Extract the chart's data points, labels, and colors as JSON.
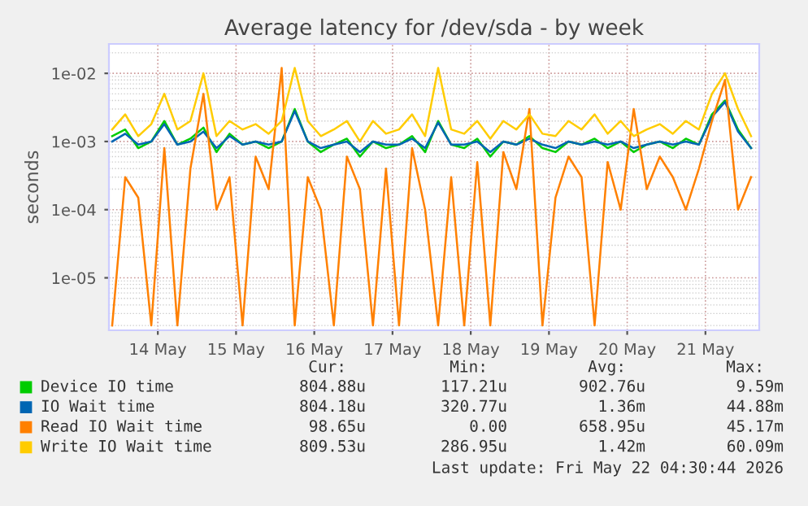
{
  "chart_data": {
    "type": "line",
    "title": "Average latency for /dev/sda - by week",
    "ylabel": "seconds",
    "log": "y",
    "grid": true,
    "legend": "bottom",
    "x": [
      "2026-05-13T22:00",
      "2026-05-14T02:00",
      "2026-05-14T06:00",
      "2026-05-14T10:00",
      "2026-05-14T14:00",
      "2026-05-14T18:00",
      "2026-05-14T22:00",
      "2026-05-15T02:00",
      "2026-05-15T06:00",
      "2026-05-15T10:00",
      "2026-05-15T14:00",
      "2026-05-15T18:00",
      "2026-05-15T22:00",
      "2026-05-16T02:00",
      "2026-05-16T06:00",
      "2026-05-16T10:00",
      "2026-05-16T14:00",
      "2026-05-16T18:00",
      "2026-05-16T22:00",
      "2026-05-17T02:00",
      "2026-05-17T06:00",
      "2026-05-17T10:00",
      "2026-05-17T14:00",
      "2026-05-17T18:00",
      "2026-05-17T22:00",
      "2026-05-18T02:00",
      "2026-05-18T06:00",
      "2026-05-18T10:00",
      "2026-05-18T14:00",
      "2026-05-18T18:00",
      "2026-05-18T22:00",
      "2026-05-19T02:00",
      "2026-05-19T06:00",
      "2026-05-19T10:00",
      "2026-05-19T14:00",
      "2026-05-19T18:00",
      "2026-05-19T22:00",
      "2026-05-20T02:00",
      "2026-05-20T06:00",
      "2026-05-20T10:00",
      "2026-05-20T14:00",
      "2026-05-20T18:00",
      "2026-05-20T22:00",
      "2026-05-21T02:00",
      "2026-05-21T06:00",
      "2026-05-21T10:00",
      "2026-05-21T14:00",
      "2026-05-21T18:00",
      "2026-05-21T22:00",
      "2026-05-22T02:00"
    ],
    "series": [
      {
        "name": "Device IO time",
        "color": "#00cc00",
        "values": [
          0.0012,
          0.0015,
          0.0008,
          0.001,
          0.002,
          0.0009,
          0.0011,
          0.0016,
          0.0007,
          0.0013,
          0.0009,
          0.001,
          0.0008,
          0.001,
          0.003,
          0.001,
          0.0007,
          0.0009,
          0.0011,
          0.0006,
          0.001,
          0.0008,
          0.0009,
          0.0012,
          0.0007,
          0.002,
          0.0009,
          0.0008,
          0.0011,
          0.0006,
          0.001,
          0.0009,
          0.0012,
          0.0008,
          0.0007,
          0.001,
          0.0009,
          0.0011,
          0.0008,
          0.001,
          0.0007,
          0.0009,
          0.001,
          0.0008,
          0.0011,
          0.0009,
          0.0025,
          0.004,
          0.0015,
          0.0008
        ]
      },
      {
        "name": "IO Wait time",
        "color": "#0066b3",
        "values": [
          0.001,
          0.0013,
          0.0009,
          0.001,
          0.0018,
          0.0009,
          0.001,
          0.0014,
          0.0008,
          0.0012,
          0.0009,
          0.001,
          0.0009,
          0.001,
          0.0028,
          0.001,
          0.0008,
          0.0009,
          0.001,
          0.0007,
          0.001,
          0.0009,
          0.0009,
          0.0011,
          0.0008,
          0.0019,
          0.0009,
          0.0009,
          0.001,
          0.0007,
          0.001,
          0.0009,
          0.0011,
          0.0009,
          0.0008,
          0.001,
          0.0009,
          0.001,
          0.0009,
          0.001,
          0.0008,
          0.0009,
          0.001,
          0.0009,
          0.001,
          0.0009,
          0.0023,
          0.0038,
          0.0014,
          0.0008
        ]
      },
      {
        "name": "Read IO Wait time",
        "color": "#ff8000",
        "values": [
          2e-06,
          0.0003,
          0.00015,
          2e-06,
          0.0008,
          2e-06,
          0.0004,
          0.005,
          0.0001,
          0.0003,
          2e-06,
          0.0006,
          0.0002,
          0.012,
          2e-06,
          0.0003,
          0.0001,
          2e-06,
          0.0006,
          0.0002,
          2e-06,
          0.0004,
          2e-06,
          0.0008,
          0.0001,
          2e-06,
          0.0003,
          2e-06,
          0.0005,
          2e-06,
          0.0007,
          0.0002,
          0.003,
          2e-06,
          0.00015,
          0.0006,
          0.0003,
          2e-06,
          0.0005,
          0.0001,
          0.003,
          0.0002,
          0.0006,
          0.0003,
          0.0001,
          0.0004,
          0.002,
          0.008,
          0.0001,
          0.0003
        ]
      },
      {
        "name": "Write IO Wait time",
        "color": "#ffcc00",
        "values": [
          0.0015,
          0.0025,
          0.0012,
          0.0018,
          0.005,
          0.0015,
          0.002,
          0.01,
          0.0012,
          0.002,
          0.0015,
          0.0018,
          0.0013,
          0.002,
          0.012,
          0.002,
          0.0012,
          0.0015,
          0.002,
          0.001,
          0.002,
          0.0013,
          0.0015,
          0.0025,
          0.0012,
          0.012,
          0.0015,
          0.0013,
          0.002,
          0.0011,
          0.002,
          0.0015,
          0.0025,
          0.0013,
          0.0012,
          0.002,
          0.0015,
          0.0025,
          0.0013,
          0.002,
          0.0012,
          0.0015,
          0.0018,
          0.0013,
          0.002,
          0.0015,
          0.005,
          0.01,
          0.003,
          0.0012
        ]
      }
    ],
    "xlim": [
      "2026-05-13T21:00",
      "2026-05-22T04:30"
    ],
    "xticks": [
      {
        "value": "2026-05-14T12:00",
        "label": "14 May"
      },
      {
        "value": "2026-05-15T12:00",
        "label": "15 May"
      },
      {
        "value": "2026-05-16T12:00",
        "label": "16 May"
      },
      {
        "value": "2026-05-17T12:00",
        "label": "17 May"
      },
      {
        "value": "2026-05-18T12:00",
        "label": "18 May"
      },
      {
        "value": "2026-05-19T12:00",
        "label": "19 May"
      },
      {
        "value": "2026-05-20T12:00",
        "label": "20 May"
      },
      {
        "value": "2026-05-21T12:00",
        "label": "21 May"
      }
    ],
    "ylim": [
      1.7e-06,
      0.027
    ],
    "yticks": [
      {
        "value": 1e-05,
        "label": "1e-05"
      },
      {
        "value": 0.0001,
        "label": "1e-04"
      },
      {
        "value": 0.001,
        "label": "1e-03"
      },
      {
        "value": 0.01,
        "label": "1e-02"
      }
    ],
    "annotations": [
      "Cur:",
      "Min:",
      "Avg:",
      "Max:",
      "804.88u",
      "117.21u",
      "902.76u",
      "9.59m",
      "804.18u",
      "320.77u",
      "1.36m",
      "44.88m",
      "98.65u",
      "0.00",
      "658.95u",
      "45.17m",
      "809.53u",
      "286.95u",
      "1.42m",
      "60.09m",
      "Last update: Fri May 22 04:30:44 2026"
    ]
  }
}
